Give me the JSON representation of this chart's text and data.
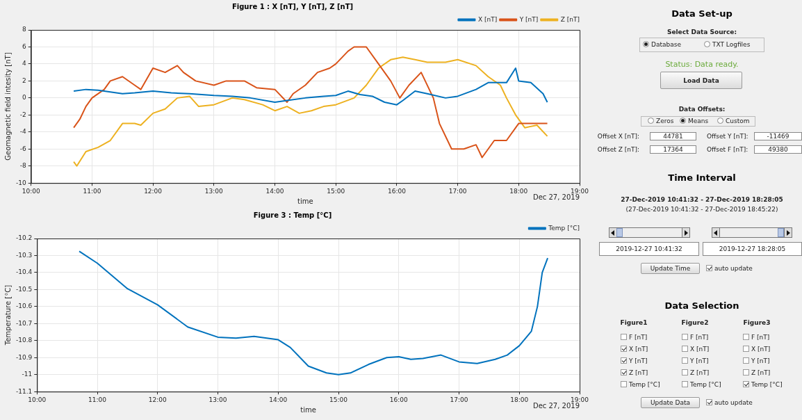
{
  "chart_data": [
    {
      "type": "line",
      "title": "Figure 1 : X [nT], Y [nT], Z [nT]",
      "xlabel": "time",
      "ylabel": "Geomagnetic field intesity [nT]",
      "xlim": [
        10,
        19
      ],
      "xticks": [
        {
          "value": 10,
          "label": "10:00"
        },
        {
          "value": 11,
          "label": "11:00"
        },
        {
          "value": 12,
          "label": "12:00"
        },
        {
          "value": 13,
          "label": "13:00"
        },
        {
          "value": 14,
          "label": "14:00"
        },
        {
          "value": 15,
          "label": "15:00"
        },
        {
          "value": 16,
          "label": "16:00"
        },
        {
          "value": 17,
          "label": "17:00"
        },
        {
          "value": 18,
          "label": "18:00"
        },
        {
          "value": 19,
          "label": "19:00"
        }
      ],
      "ylim": [
        -10,
        8
      ],
      "yticks": [
        -10,
        -8,
        -6,
        -4,
        -2,
        0,
        2,
        4,
        6,
        8
      ],
      "grid": true,
      "legend": "top right",
      "annotations": [
        "Dec 27, 2019"
      ],
      "series": [
        {
          "name": "X [nT]",
          "color": "#0072bd",
          "x": [
            10.7,
            10.9,
            11.1,
            11.3,
            11.5,
            11.7,
            12,
            12.3,
            12.6,
            13,
            13.3,
            13.6,
            14,
            14.2,
            14.5,
            14.8,
            15,
            15.2,
            15.4,
            15.6,
            15.8,
            16,
            16.1,
            16.3,
            16.5,
            16.8,
            17,
            17.3,
            17.5,
            17.8,
            17.95,
            18,
            18.2,
            18.4,
            18.47
          ],
          "values": [
            0.8,
            1,
            0.9,
            0.7,
            0.5,
            0.6,
            0.8,
            0.6,
            0.5,
            0.3,
            0.2,
            0,
            -0.5,
            -0.3,
            0,
            0.2,
            0.3,
            0.8,
            0.4,
            0.2,
            -0.5,
            -0.8,
            -0.3,
            0.8,
            0.5,
            0,
            0.2,
            1,
            1.8,
            1.8,
            3.5,
            2,
            1.8,
            0.5,
            -0.5
          ]
        },
        {
          "name": "Y [nT]",
          "color": "#d95319",
          "x": [
            10.7,
            10.8,
            10.9,
            11,
            11.2,
            11.3,
            11.5,
            11.7,
            11.8,
            12,
            12.2,
            12.4,
            12.5,
            12.7,
            13,
            13.2,
            13.5,
            13.7,
            14,
            14.2,
            14.3,
            14.5,
            14.7,
            14.9,
            15,
            15.2,
            15.3,
            15.5,
            15.7,
            15.9,
            16.05,
            16.2,
            16.4,
            16.6,
            16.7,
            16.9,
            17.1,
            17.3,
            17.4,
            17.6,
            17.8,
            18,
            18.2,
            18.4,
            18.47
          ],
          "values": [
            -3.5,
            -2.5,
            -1,
            0,
            1,
            2,
            2.5,
            1.5,
            1,
            3.5,
            3,
            3.8,
            3,
            2,
            1.5,
            2,
            2,
            1.2,
            1,
            -0.5,
            0.5,
            1.5,
            3,
            3.5,
            4,
            5.5,
            6,
            6,
            4,
            2,
            0,
            1.5,
            3,
            0,
            -3,
            -6,
            -6,
            -5.5,
            -7,
            -5,
            -5,
            -3,
            -3,
            -3,
            -3
          ]
        },
        {
          "name": "Z [nT]",
          "color": "#edb120",
          "x": [
            10.7,
            10.75,
            10.9,
            11.1,
            11.3,
            11.5,
            11.7,
            11.8,
            12,
            12.2,
            12.4,
            12.6,
            12.75,
            13,
            13.3,
            13.5,
            13.8,
            14,
            14.2,
            14.4,
            14.6,
            14.8,
            15,
            15.3,
            15.5,
            15.7,
            15.9,
            16.1,
            16.3,
            16.5,
            16.8,
            17,
            17.3,
            17.5,
            17.7,
            17.8,
            17.95,
            18.1,
            18.3,
            18.47
          ],
          "values": [
            -7.5,
            -8,
            -6.3,
            -5.8,
            -5,
            -3,
            -3,
            -3.2,
            -1.8,
            -1.3,
            0,
            0.2,
            -1,
            -0.8,
            0,
            -0.2,
            -0.8,
            -1.5,
            -1,
            -1.8,
            -1.5,
            -1,
            -0.8,
            0,
            1.5,
            3.5,
            4.5,
            4.8,
            4.5,
            4.2,
            4.2,
            4.5,
            3.8,
            2.5,
            1.5,
            0,
            -2,
            -3.5,
            -3.2,
            -4.5
          ]
        }
      ]
    },
    {
      "type": "line",
      "title": "Figure 3 : Temp [°C]",
      "xlabel": "time",
      "ylabel": "Temperature [°C]",
      "xlim": [
        10,
        19
      ],
      "xticks": [
        {
          "value": 10,
          "label": "10:00"
        },
        {
          "value": 11,
          "label": "11:00"
        },
        {
          "value": 12,
          "label": "12:00"
        },
        {
          "value": 13,
          "label": "13:00"
        },
        {
          "value": 14,
          "label": "14:00"
        },
        {
          "value": 15,
          "label": "15:00"
        },
        {
          "value": 16,
          "label": "16:00"
        },
        {
          "value": 17,
          "label": "17:00"
        },
        {
          "value": 18,
          "label": "18:00"
        },
        {
          "value": 19,
          "label": "19:00"
        }
      ],
      "ylim": [
        -11.1,
        -10.2
      ],
      "yticks": [
        -11.1,
        -11,
        -10.9,
        -10.8,
        -10.7,
        -10.6,
        -10.5,
        -10.4,
        -10.3,
        -10.2
      ],
      "grid": true,
      "legend": "top right",
      "annotations": [
        "Dec 27, 2019"
      ],
      "series": [
        {
          "name": "Temp [°C]",
          "color": "#0072bd",
          "x": [
            10.7,
            11,
            11.5,
            12,
            12.5,
            13,
            13.3,
            13.6,
            14,
            14.2,
            14.5,
            14.8,
            15,
            15.2,
            15.5,
            15.8,
            16,
            16.2,
            16.4,
            16.7,
            17,
            17.3,
            17.6,
            17.8,
            18,
            18.2,
            18.3,
            18.38,
            18.47
          ],
          "values": [
            -10.275,
            -10.345,
            -10.495,
            -10.59,
            -10.72,
            -10.78,
            -10.785,
            -10.775,
            -10.795,
            -10.84,
            -10.95,
            -10.99,
            -11,
            -10.99,
            -10.94,
            -10.9,
            -10.895,
            -10.91,
            -10.905,
            -10.885,
            -10.925,
            -10.935,
            -10.91,
            -10.885,
            -10.83,
            -10.745,
            -10.6,
            -10.4,
            -10.315
          ]
        }
      ]
    },
    {
      "type": "other",
      "title": "Data Set-up",
      "annotations": [
        "Select Data Source:",
        "Database",
        "TXT Logfiles",
        "Status: Data ready.",
        "Load Data",
        "Data Offsets:",
        "Zeros",
        "Means",
        "Custom",
        "Offset X [nT]:",
        "44781",
        "Offset Y [nT]:",
        "-11469",
        "Offset Z [nT]:",
        "17364",
        "Offset F [nT]:",
        "49380",
        "Time Interval",
        "27-Dec-2019 10:41:32  -  27-Dec-2019 18:28:05",
        "(27-Dec-2019 10:41:32 - 27-Dec-2019 18:45:22)",
        "2019-12-27 10:41:32",
        "2019-12-27 18:28:05",
        "Update Time",
        "auto update",
        "Data Selection",
        "Figure1",
        "Figure2",
        "Figure3",
        "F [nT]",
        "X [nT]",
        "Y [nT]",
        "Z [nT]",
        "Temp [°C]",
        "F [nT]",
        "X [nT]",
        "Y [nT]",
        "Z [nT]",
        "Temp [°C]",
        "F [nT]",
        "X [nT]",
        "Y [nT]",
        "Z [nT]",
        "Temp [°C]",
        "Update Data",
        "auto update"
      ]
    }
  ]
}
